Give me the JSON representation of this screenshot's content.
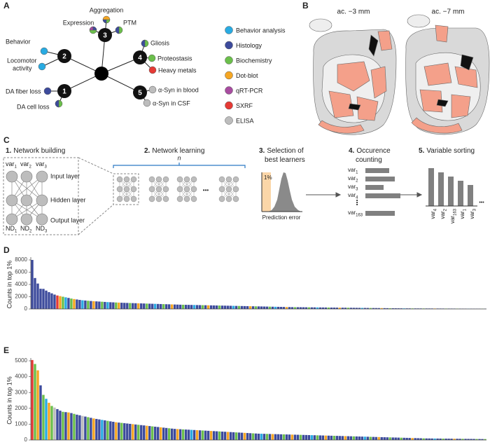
{
  "panel_labels": [
    "A",
    "B",
    "C",
    "D",
    "E"
  ],
  "panel_a": {
    "nodes": [
      "1",
      "2",
      "3",
      "4",
      "5"
    ],
    "outcomes": {
      "aggregation": "Aggregation",
      "expression": "Expression",
      "ptm": "PTM",
      "behavior": "Behavior",
      "locomotor": [
        "Locomotor",
        "activity"
      ],
      "gliosis": "Gliosis",
      "proteostasis": "Proteostasis",
      "metals": "Heavy metals",
      "fiber": "DA fiber loss",
      "cell": "DA cell loss",
      "blood": "α-Syn in blood",
      "csf": "α-Syn in CSF"
    },
    "legend": [
      {
        "label": "Behavior analysis",
        "color": "#29abe2"
      },
      {
        "label": "Histology",
        "color": "#3d4b9c"
      },
      {
        "label": "Biochemistry",
        "color": "#6bbf4b"
      },
      {
        "label": "Dot-blot",
        "color": "#f5a623"
      },
      {
        "label": "qRT-PCR",
        "color": "#a84ca0"
      },
      {
        "label": "SXRF",
        "color": "#e53a35"
      },
      {
        "label": "ELISA",
        "color": "#bdbdbd"
      }
    ]
  },
  "panel_b": {
    "sections": [
      "ac. −3 mm",
      "ac. −7 mm"
    ]
  },
  "panel_c": {
    "steps": [
      {
        "num": "1.",
        "title": [
          "Network building"
        ]
      },
      {
        "num": "2.",
        "title": [
          "Network learning"
        ]
      },
      {
        "num": "3.",
        "title": [
          "Selection of",
          "best learners"
        ]
      },
      {
        "num": "4.",
        "title": [
          "Occurence",
          "counting"
        ]
      },
      {
        "num": "5.",
        "title": [
          "Variable sorting"
        ]
      }
    ],
    "inputs": [
      {
        "base": "var",
        "sub": "1"
      },
      {
        "base": "var",
        "sub": "2"
      },
      {
        "base": "var",
        "sub": "3"
      }
    ],
    "outputs": [
      {
        "base": "ND",
        "sub": "1"
      },
      {
        "base": "ND",
        "sub": "2"
      },
      {
        "base": "ND",
        "sub": "3"
      }
    ],
    "layers": [
      "Input layer",
      "Hidden layer",
      "Output layer"
    ],
    "repeat": "n",
    "ellipsis": "•••",
    "vdots": "⋮",
    "percent": "1%",
    "error_label": "Prediction error",
    "counting": [
      {
        "base": "var",
        "sub": "1"
      },
      {
        "base": "var",
        "sub": "2"
      },
      {
        "base": "var",
        "sub": "3"
      },
      {
        "base": "var",
        "sub": "4"
      },
      {
        "base": "var",
        "sub": "163"
      }
    ],
    "sorting": [
      {
        "base": "var",
        "sub": "4"
      },
      {
        "base": "var",
        "sub": "2"
      },
      {
        "base": "var",
        "sub": "163"
      },
      {
        "base": "var",
        "sub": "1"
      },
      {
        "base": "var",
        "sub": "3"
      }
    ]
  },
  "chart_data": [
    {
      "type": "bar",
      "ylabel": "Counts in top 1%",
      "ylim": [
        0,
        8000
      ],
      "yticks": [
        0,
        2000,
        4000,
        6000,
        8000
      ],
      "values": [
        8000,
        5050,
        4150,
        3300,
        3280,
        3000,
        2750,
        2550,
        2350,
        2200,
        2100,
        2000,
        1900,
        1800,
        1700,
        1620,
        1550,
        1480,
        1420,
        1380,
        1340,
        1300,
        1270,
        1240,
        1210,
        1180,
        1150,
        1120,
        1100,
        1080,
        1060,
        1040,
        1020,
        1000,
        985,
        970,
        955,
        940,
        925,
        910,
        895,
        880,
        865,
        850,
        835,
        820,
        805,
        790,
        775,
        760,
        745,
        730,
        715,
        700,
        690,
        680,
        670,
        660,
        650,
        640,
        630,
        620,
        610,
        600,
        590,
        580,
        570,
        560,
        550,
        540,
        530,
        520,
        510,
        500,
        490,
        480,
        470,
        460,
        450,
        440,
        430,
        420,
        410,
        400,
        390,
        380,
        370,
        360,
        350,
        340,
        330,
        320,
        310,
        300,
        295,
        290,
        285,
        280,
        275,
        270,
        265,
        260,
        255,
        250,
        245,
        240,
        235,
        230,
        225,
        220,
        215,
        210,
        205,
        200,
        195,
        190,
        185,
        180,
        175,
        170,
        165,
        160,
        155,
        150,
        145,
        140,
        135,
        130,
        125,
        120,
        115,
        110,
        105,
        100,
        98,
        96,
        94,
        92,
        90,
        88,
        86,
        84,
        82,
        80,
        78,
        76,
        74,
        72,
        70,
        68,
        66,
        64,
        62,
        60,
        58,
        56,
        54,
        52,
        50,
        48,
        46,
        44,
        42
      ],
      "colors": [
        "#3d4b9c",
        "#3d4b9c",
        "#3d4b9c",
        "#3d4b9c",
        "#3d4b9c",
        "#3d4b9c",
        "#3d4b9c",
        "#3d4b9c",
        "#3d4b9c",
        "#e53a35",
        "#f5a623",
        "#6bbf4b",
        "#29abe2",
        "#3d4b9c",
        "#6bbf4b",
        "#f5a623",
        "#3d4b9c",
        "#3d4b9c",
        "#29abe2",
        "#3d4b9c",
        "#6bbf4b",
        "#3d4b9c",
        "#f5a623",
        "#3d4b9c",
        "#3d4b9c",
        "#6bbf4b",
        "#3d4b9c",
        "#29abe2",
        "#3d4b9c",
        "#3d4b9c",
        "#6bbf4b",
        "#f5a623",
        "#3d4b9c",
        "#3d4b9c",
        "#3d4b9c",
        "#6bbf4b",
        "#3d4b9c",
        "#3d4b9c",
        "#f5a623",
        "#3d4b9c",
        "#3d4b9c",
        "#6bbf4b",
        "#3d4b9c",
        "#3d4b9c",
        "#29abe2",
        "#3d4b9c",
        "#3d4b9c",
        "#6bbf4b",
        "#3d4b9c",
        "#3d4b9c",
        "#f5a623",
        "#3d4b9c",
        "#3d4b9c",
        "#3d4b9c",
        "#6bbf4b",
        "#3d4b9c",
        "#3d4b9c",
        "#3d4b9c",
        "#29abe2",
        "#3d4b9c",
        "#3d4b9c",
        "#6bbf4b",
        "#3d4b9c",
        "#f5a623",
        "#3d4b9c",
        "#3d4b9c",
        "#3d4b9c",
        "#6bbf4b",
        "#3d4b9c",
        "#3d4b9c",
        "#3d4b9c",
        "#3d4b9c",
        "#29abe2",
        "#3d4b9c",
        "#6bbf4b",
        "#3d4b9c",
        "#3d4b9c",
        "#3d4b9c",
        "#f5a623",
        "#3d4b9c",
        "#6bbf4b",
        "#3d4b9c",
        "#3d4b9c",
        "#3d4b9c",
        "#3d4b9c",
        "#6bbf4b",
        "#3d4b9c",
        "#29abe2",
        "#3d4b9c",
        "#3d4b9c",
        "#3d4b9c",
        "#f5a623",
        "#3d4b9c",
        "#3d4b9c",
        "#6bbf4b",
        "#3d4b9c",
        "#3d4b9c",
        "#3d4b9c",
        "#3d4b9c",
        "#6bbf4b",
        "#3d4b9c",
        "#3d4b9c",
        "#29abe2",
        "#3d4b9c",
        "#3d4b9c",
        "#3d4b9c",
        "#6bbf4b",
        "#3d4b9c",
        "#3d4b9c",
        "#3d4b9c",
        "#f5a623",
        "#3d4b9c",
        "#3d4b9c",
        "#6bbf4b",
        "#3d4b9c",
        "#3d4b9c",
        "#3d4b9c",
        "#3d4b9c",
        "#29abe2",
        "#3d4b9c",
        "#3d4b9c",
        "#6bbf4b",
        "#3d4b9c",
        "#3d4b9c",
        "#3d4b9c",
        "#f5a623",
        "#3d4b9c",
        "#3d4b9c",
        "#6bbf4b",
        "#3d4b9c",
        "#3d4b9c",
        "#3d4b9c",
        "#3d4b9c",
        "#29abe2",
        "#3d4b9c",
        "#3d4b9c",
        "#6bbf4b",
        "#3d4b9c",
        "#3d4b9c",
        "#3d4b9c",
        "#6bbf4b",
        "#3d4b9c",
        "#3d4b9c",
        "#3d4b9c",
        "#f5a623",
        "#3d4b9c",
        "#3d4b9c",
        "#3d4b9c",
        "#6bbf4b",
        "#3d4b9c",
        "#3d4b9c",
        "#3d4b9c",
        "#6bbf4b",
        "#3d4b9c",
        "#3d4b9c",
        "#3d4b9c",
        "#29abe2",
        "#3d4b9c",
        "#3d4b9c",
        "#3d4b9c",
        "#3d4b9c",
        "#6bbf4b",
        "#3d4b9c"
      ]
    },
    {
      "type": "bar",
      "ylabel": "Counts in top 1%",
      "ylim": [
        0,
        5000
      ],
      "yticks": [
        0,
        1000,
        2000,
        3000,
        4000,
        5000
      ],
      "values": [
        5050,
        4800,
        4400,
        3450,
        2850,
        2600,
        2350,
        2150,
        2050,
        1950,
        1850,
        1780,
        1760,
        1740,
        1700,
        1650,
        1600,
        1560,
        1520,
        1480,
        1440,
        1400,
        1360,
        1330,
        1300,
        1270,
        1240,
        1210,
        1180,
        1150,
        1120,
        1100,
        1080,
        1060,
        1040,
        1020,
        1000,
        980,
        960,
        940,
        920,
        900,
        880,
        860,
        840,
        820,
        800,
        780,
        760,
        740,
        720,
        700,
        690,
        680,
        670,
        660,
        650,
        640,
        630,
        620,
        610,
        600,
        590,
        580,
        570,
        560,
        550,
        540,
        530,
        520,
        510,
        500,
        490,
        480,
        470,
        460,
        450,
        440,
        430,
        420,
        410,
        400,
        395,
        390,
        385,
        380,
        375,
        370,
        365,
        360,
        355,
        350,
        345,
        340,
        335,
        330,
        325,
        320,
        315,
        310,
        305,
        300,
        295,
        290,
        285,
        280,
        275,
        270,
        265,
        260,
        255,
        250,
        245,
        240,
        235,
        230,
        225,
        220,
        215,
        210,
        205,
        200,
        195,
        190,
        185,
        180,
        175,
        170,
        165,
        160,
        155,
        150,
        145,
        140,
        135,
        130,
        125,
        120,
        115,
        110,
        105,
        100,
        98,
        96,
        94,
        92,
        90,
        88,
        86,
        84,
        82,
        80,
        78,
        76,
        74,
        72,
        70,
        68,
        66,
        64,
        62,
        60,
        58
      ],
      "colors": [
        "#e53a35",
        "#6bbf4b",
        "#f5a623",
        "#3d4b9c",
        "#6bbf4b",
        "#29abe2",
        "#f5a623",
        "#6bbf4b",
        "#bdbdbd",
        "#3d4b9c",
        "#3d4b9c",
        "#6bbf4b",
        "#3d4b9c",
        "#f5a623",
        "#3d4b9c",
        "#6bbf4b",
        "#3d4b9c",
        "#3d4b9c",
        "#bdbdbd",
        "#3d4b9c",
        "#6bbf4b",
        "#3d4b9c",
        "#f5a623",
        "#3d4b9c",
        "#3d4b9c",
        "#29abe2",
        "#3d4b9c",
        "#6bbf4b",
        "#3d4b9c",
        "#3d4b9c",
        "#f5a623",
        "#3d4b9c",
        "#6bbf4b",
        "#3d4b9c",
        "#3d4b9c",
        "#3d4b9c",
        "#f5a623",
        "#3d4b9c",
        "#6bbf4b",
        "#3d4b9c",
        "#3d4b9c",
        "#f5a623",
        "#3d4b9c",
        "#6bbf4b",
        "#3d4b9c",
        "#3d4b9c",
        "#f5a623",
        "#3d4b9c",
        "#3d4b9c",
        "#6bbf4b",
        "#3d4b9c",
        "#3d4b9c",
        "#f5a623",
        "#3d4b9c",
        "#6bbf4b",
        "#3d4b9c",
        "#3d4b9c",
        "#29abe2",
        "#3d4b9c",
        "#f5a623",
        "#3d4b9c",
        "#6bbf4b",
        "#3d4b9c",
        "#3d4b9c",
        "#f5a623",
        "#3d4b9c",
        "#3d4b9c",
        "#6bbf4b",
        "#3d4b9c",
        "#3d4b9c",
        "#f5a623",
        "#3d4b9c",
        "#3d4b9c",
        "#6bbf4b",
        "#3d4b9c",
        "#3d4b9c",
        "#f5a623",
        "#3d4b9c",
        "#3d4b9c",
        "#6bbf4b",
        "#3d4b9c",
        "#3d4b9c",
        "#29abe2",
        "#3d4b9c",
        "#6bbf4b",
        "#3d4b9c",
        "#f5a623",
        "#3d4b9c",
        "#3d4b9c",
        "#3d4b9c",
        "#6bbf4b",
        "#3d4b9c",
        "#3d4b9c",
        "#f5a623",
        "#3d4b9c",
        "#3d4b9c",
        "#6bbf4b",
        "#3d4b9c",
        "#3d4b9c",
        "#3d4b9c",
        "#29abe2",
        "#3d4b9c",
        "#6bbf4b",
        "#3d4b9c",
        "#3d4b9c",
        "#f5a623",
        "#3d4b9c",
        "#3d4b9c",
        "#6bbf4b",
        "#3d4b9c",
        "#3d4b9c",
        "#3d4b9c",
        "#f5a623",
        "#3d4b9c",
        "#3d4b9c",
        "#6bbf4b",
        "#3d4b9c",
        "#3d4b9c",
        "#3d4b9c",
        "#29abe2",
        "#3d4b9c",
        "#6bbf4b",
        "#3d4b9c",
        "#3d4b9c",
        "#f5a623",
        "#3d4b9c",
        "#3d4b9c",
        "#3d4b9c",
        "#6bbf4b",
        "#3d4b9c",
        "#3d4b9c",
        "#3d4b9c",
        "#6bbf4b",
        "#3d4b9c",
        "#3d4b9c",
        "#3d4b9c",
        "#f5a623",
        "#3d4b9c",
        "#3d4b9c",
        "#3d4b9c",
        "#6bbf4b",
        "#3d4b9c",
        "#3d4b9c",
        "#3d4b9c",
        "#29abe2",
        "#3d4b9c",
        "#3d4b9c",
        "#6bbf4b",
        "#3d4b9c",
        "#3d4b9c",
        "#3d4b9c",
        "#f5a623",
        "#3d4b9c",
        "#3d4b9c",
        "#6bbf4b",
        "#3d4b9c",
        "#3d4b9c",
        "#3d4b9c",
        "#3d4b9c",
        "#6bbf4b",
        "#3d4b9c",
        "#3d4b9c",
        "#6bbf4b"
      ]
    }
  ]
}
